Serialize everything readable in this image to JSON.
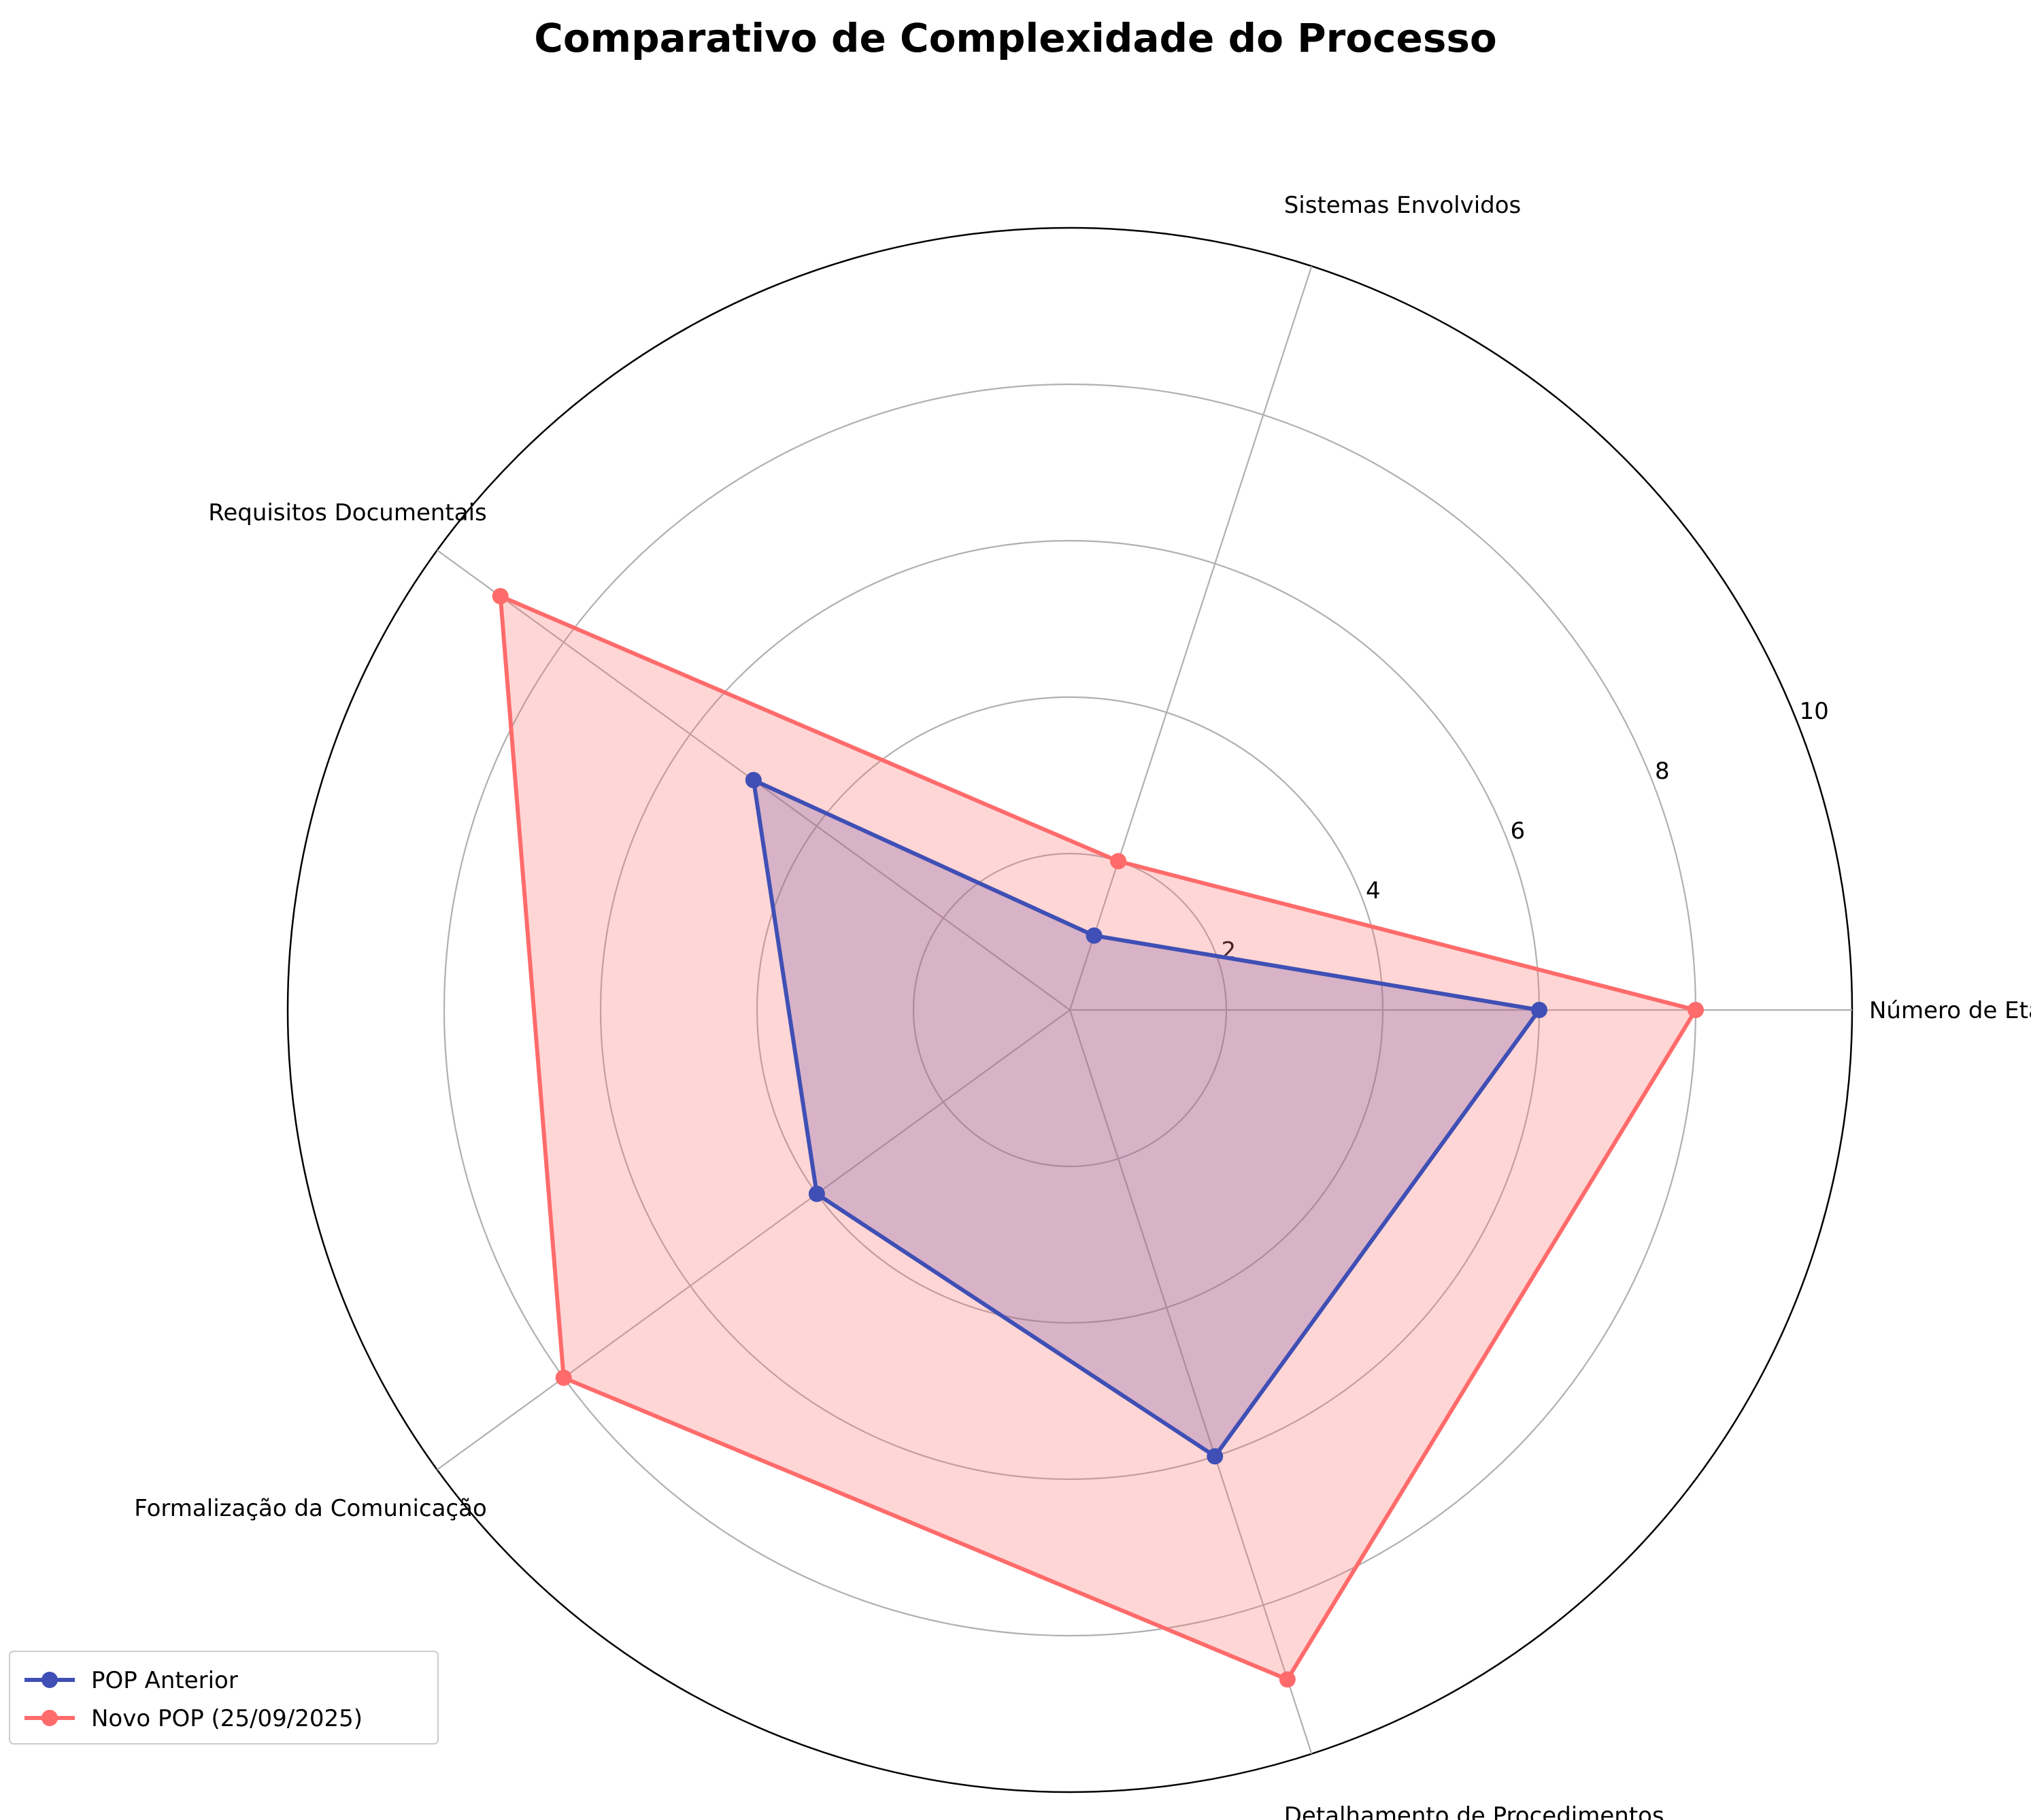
{
  "chart_data": {
    "type": "radar",
    "title": "Comparativo de Complexidade do Processo",
    "axes": [
      "Número de Etapas",
      "Sistemas Envolvidos",
      "Requisitos Documentais",
      "Formalização da Comunicação",
      "Detalhamento de Procedimentos"
    ],
    "rlim": [
      0,
      10
    ],
    "rticks": [
      "2",
      "4",
      "6",
      "8",
      "10"
    ],
    "grid": true,
    "legend_position": "lower-left",
    "series": [
      {
        "name": "POP Anterior",
        "values": [
          6,
          1,
          5,
          4,
          6
        ],
        "color": "#3f4fb5"
      },
      {
        "name": "Novo POP (25/09/2025)",
        "values": [
          8,
          2,
          9,
          8,
          9
        ],
        "color": "#ff6b6b"
      }
    ]
  }
}
